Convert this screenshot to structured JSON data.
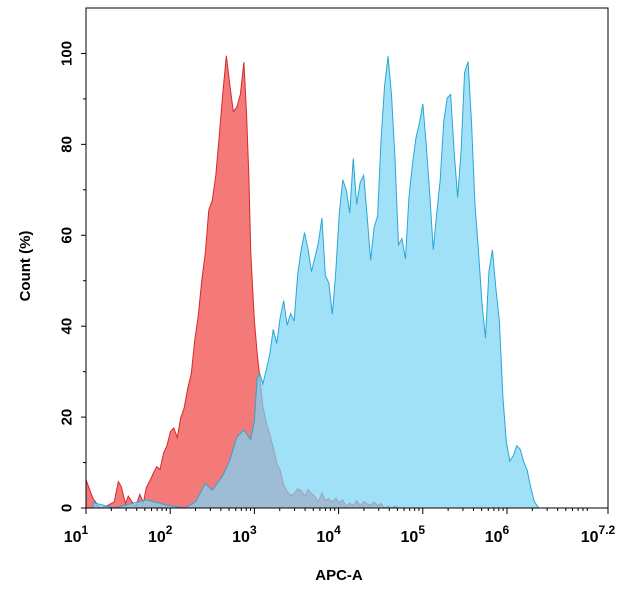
{
  "chart_data": {
    "type": "area",
    "xlabel": "APC-A",
    "ylabel": "Count  (%)",
    "xscale": "log10",
    "xlim": [
      10,
      15848931.92
    ],
    "ylim": [
      0,
      110
    ],
    "grid": false,
    "legend": "none",
    "x_ticks": [
      {
        "value": 10,
        "base": "10",
        "exp": "1"
      },
      {
        "value": 100,
        "base": "10",
        "exp": "2"
      },
      {
        "value": 1000,
        "base": "10",
        "exp": "3"
      },
      {
        "value": 10000,
        "base": "10",
        "exp": "4"
      },
      {
        "value": 100000,
        "base": "10",
        "exp": "5"
      },
      {
        "value": 1000000,
        "base": "10",
        "exp": "6"
      },
      {
        "value": 15848931.92,
        "base": "10",
        "exp": "7.2"
      }
    ],
    "y_ticks": [
      {
        "value": 0,
        "label": "0"
      },
      {
        "value": 20,
        "label": "20"
      },
      {
        "value": 40,
        "label": "40"
      },
      {
        "value": 60,
        "label": "60"
      },
      {
        "value": 80,
        "label": "80"
      },
      {
        "value": 100,
        "label": "100"
      }
    ],
    "series": [
      {
        "color": "#f25c5c",
        "stroke": "#d42a2a",
        "x": [
          10,
          12.1,
          14.7,
          17.8,
          21.6,
          24.2,
          26.1,
          29.4,
          31.8,
          35.6,
          39.2,
          43.5,
          48.1,
          52.0,
          57.8,
          63.1,
          69.2,
          75.7,
          83.5,
          91.4,
          100.7,
          110.4,
          121.3,
          133.2,
          146.4,
          161.4,
          177.8,
          195.7,
          215.8,
          237.2,
          261.0,
          287.5,
          316.2,
          348.1,
          383.0,
          421.7,
          464.2,
          510.9,
          562.4,
          618.7,
          681.3,
          750.6,
          806.0,
          860.0,
          903.9,
          961.6,
          1000,
          1078.1,
          1164.5,
          1259.0,
          1384.5,
          1522.6,
          1674.7,
          1841.6,
          2025.3,
          2227.4,
          2449.7,
          2693.9,
          2962.8,
          3258.4,
          3583.4,
          3940.9,
          4333.4,
          4766.1,
          5241.8,
          5764.7,
          6340.1,
          6972.7,
          7668.6,
          8433.8,
          9275.4,
          10201,
          11220,
          12340,
          13570,
          14930,
          16420,
          18060,
          19860,
          21840,
          24020,
          26420,
          29060,
          31960,
          35150,
          38660,
          42520,
          46770,
          51440,
          56570
        ],
        "y": [
          6.2,
          2.1,
          0.0,
          0.5,
          1.3,
          5.8,
          4.8,
          1.0,
          2.6,
          1.2,
          0.4,
          3.0,
          1.2,
          4.5,
          6.1,
          7.7,
          9.1,
          8.5,
          12.1,
          13.7,
          16.8,
          17.6,
          15.5,
          19.8,
          22.0,
          26.3,
          29.5,
          36.9,
          42.4,
          50.1,
          56.0,
          65.6,
          67.7,
          73.2,
          82.0,
          91.3,
          99.5,
          93.1,
          87.2,
          88.2,
          91.0,
          98.1,
          87.0,
          72.9,
          56.7,
          46.9,
          41.2,
          34.1,
          28.4,
          22.4,
          18.9,
          16.2,
          13.4,
          9.9,
          8.3,
          5.1,
          3.6,
          2.8,
          3.1,
          4.2,
          3.9,
          2.6,
          4.1,
          3.2,
          2.5,
          1.4,
          3.3,
          1.6,
          2.0,
          1.3,
          2.2,
          1.2,
          1.8,
          0.3,
          1.1,
          0.5,
          1.6,
          0.5,
          1.4,
          0.9,
          0.6,
          1.3,
          0.5,
          1.0,
          0.0,
          0.4,
          0.0,
          0.4,
          0.0,
          0.0
        ]
      },
      {
        "color": "#7dd6f5",
        "stroke": "#29a6d6",
        "x": [
          12.1,
          21.6,
          31.8,
          52.0,
          91.4,
          150.2,
          201.3,
          261.0,
          316.2,
          421.7,
          510.9,
          618.7,
          750.6,
          903.9,
          1000,
          1078.1,
          1164.5,
          1259.0,
          1384.5,
          1522.6,
          1674.7,
          1841.6,
          2025.3,
          2227.4,
          2449.7,
          2693.9,
          2962.8,
          3258.4,
          3583.4,
          3940.9,
          4333.4,
          4766.1,
          5241.8,
          5764.7,
          6340.1,
          6972.7,
          7668.6,
          8433.8,
          9275.4,
          10201,
          11220,
          12340,
          13570,
          14930,
          16420,
          18060,
          19860,
          21840,
          24020,
          26420,
          29060,
          31960,
          35150,
          38660,
          42520,
          46770,
          51440,
          56570,
          62220,
          68430,
          75260,
          82770,
          91030,
          100115,
          110100,
          121100,
          133200,
          146500,
          161100,
          177200,
          194900,
          214400,
          235800,
          259300,
          285200,
          313700,
          345000,
          379400,
          417300,
          459000,
          504800,
          555200,
          610600,
          671500,
          738500,
          812200,
          893300,
          982500,
          1080600,
          1188400,
          1307100,
          1437600,
          1581100,
          1738900,
          1912500,
          2103400,
          2313300,
          2400000
        ],
        "y": [
          1.2,
          0.0,
          0.8,
          1.8,
          0.6,
          0.0,
          1.4,
          5.4,
          3.9,
          7.1,
          10.5,
          15.6,
          17.2,
          15.0,
          19.1,
          28.7,
          29.5,
          27.3,
          30.4,
          33.8,
          39.3,
          36.2,
          41.9,
          45.6,
          40.2,
          42.8,
          41.1,
          51.1,
          56.6,
          60.6,
          57.0,
          52.0,
          55.2,
          58.4,
          63.8,
          51.1,
          49.5,
          42.6,
          52.2,
          64.9,
          72.2,
          69.9,
          64.9,
          76.9,
          66.8,
          71.6,
          73.2,
          64.2,
          54.5,
          61.7,
          64.3,
          81.0,
          92.8,
          99.4,
          90.9,
          77.0,
          57.9,
          59.3,
          54.8,
          68.2,
          75.5,
          81.3,
          84.6,
          88.9,
          79.8,
          69.0,
          56.8,
          64.9,
          72.2,
          84.9,
          90.2,
          91.0,
          78.4,
          68.3,
          78.6,
          95.8,
          98.2,
          84.8,
          66.6,
          56.5,
          45.1,
          37.4,
          52.0,
          56.8,
          48.3,
          41.2,
          24.6,
          14.6,
          10.3,
          11.5,
          13.7,
          12.9,
          10.2,
          8.3,
          4.6,
          1.5,
          0.3,
          0.0
        ]
      }
    ]
  }
}
